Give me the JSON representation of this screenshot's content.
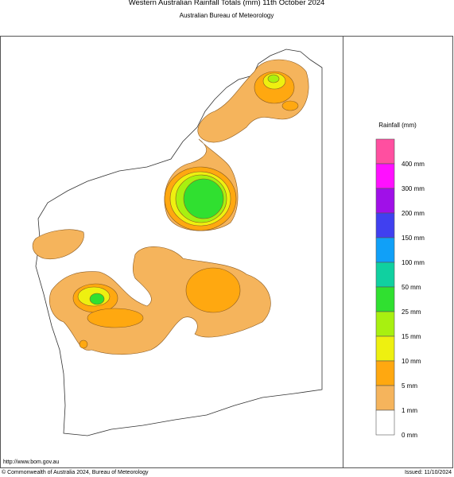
{
  "header": {
    "title": "Western Australian Rainfall Totals (mm) 11th October 2024",
    "subtitle": "Australian Bureau of Meteorology"
  },
  "legend": {
    "title": "Rainfall (mm)",
    "colors": [
      "#ff4fa0",
      "#ff10ff",
      "#a010e8",
      "#4040f0",
      "#10a0f8",
      "#10d0a0",
      "#30e030",
      "#a8f010",
      "#eef010",
      "#ffa810",
      "#f5b45c",
      "#ffffff"
    ],
    "labels": [
      "400 mm",
      "300 mm",
      "200 mm",
      "150 mm",
      "100 mm",
      "50 mm",
      "25 mm",
      "15 mm",
      "10 mm",
      "5 mm",
      "1 mm",
      "0 mm"
    ]
  },
  "footer": {
    "url": "http://www.bom.gov.au",
    "copyright": "© Commonwealth of Australia 2024, Bureau of Meteorology",
    "issued": "Issued: 11/10/2024"
  }
}
